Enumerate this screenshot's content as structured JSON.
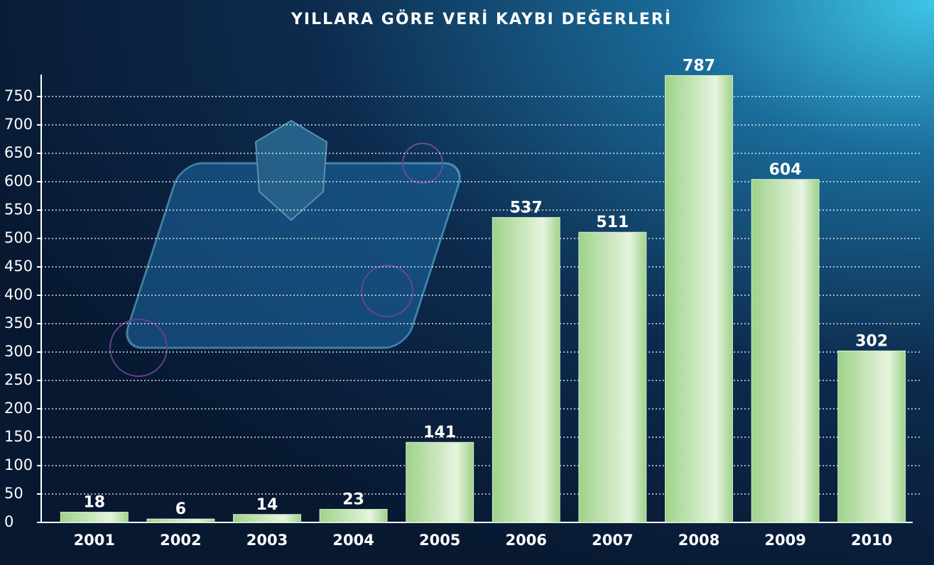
{
  "chart_data": {
    "type": "bar",
    "title": "YILLARA GÖRE VERİ KAYBI DEĞERLERİ",
    "categories": [
      "2001",
      "2002",
      "2003",
      "2004",
      "2005",
      "2006",
      "2007",
      "2008",
      "2009",
      "2010"
    ],
    "values": [
      18,
      6,
      14,
      23,
      141,
      537,
      511,
      787,
      604,
      302
    ],
    "color": "#9fd28a",
    "ylim": [
      0,
      800
    ],
    "yticks": [
      0,
      50,
      100,
      150,
      200,
      250,
      300,
      350,
      400,
      450,
      500,
      550,
      600,
      650,
      700,
      750
    ],
    "grid": true
  }
}
